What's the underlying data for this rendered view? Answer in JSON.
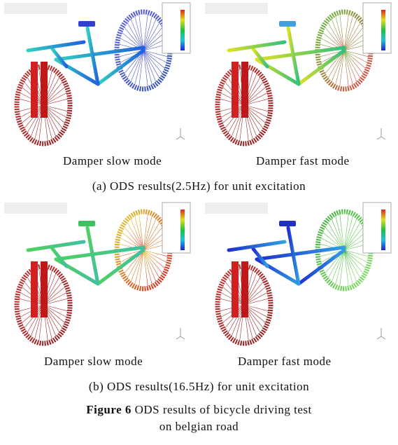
{
  "panels": [
    {
      "label": "Damper slow mode"
    },
    {
      "label": "Damper fast mode"
    },
    {
      "label": "Damper slow mode"
    },
    {
      "label": "Damper fast mode"
    }
  ],
  "rows": [
    {
      "caption": "(a) ODS results(2.5Hz) for unit excitation"
    },
    {
      "caption": "(b) ODS results(16.5Hz) for unit excitation"
    }
  ],
  "figure": {
    "label": "Figure 6",
    "caption_line1": "ODS results of bicycle driving test",
    "caption_line2": "on belgian road"
  }
}
